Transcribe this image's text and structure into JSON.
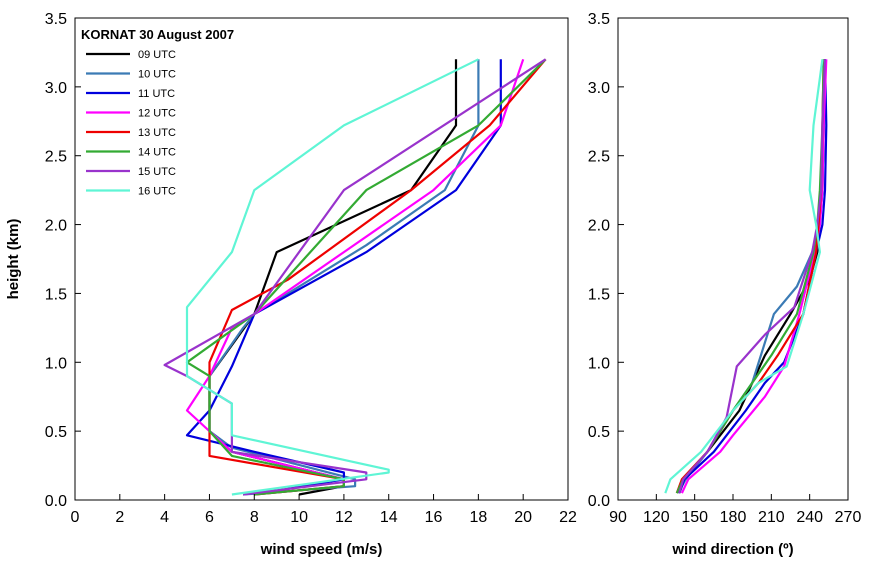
{
  "chart_data": [
    {
      "type": "line",
      "panel": "left",
      "legend_title": "KORNAT 30 August 2007",
      "legend_placement": "top-left",
      "xlabel": "wind speed (m/s)",
      "ylabel": "height (km)",
      "xlim": [
        0,
        22
      ],
      "ylim": [
        0,
        3.5
      ],
      "xticks": [
        "0",
        "2",
        "4",
        "6",
        "8",
        "10",
        "12",
        "14",
        "16",
        "18",
        "20",
        "22"
      ],
      "yticks": [
        "0.0",
        "0.5",
        "1.0",
        "1.5",
        "2.0",
        "2.5",
        "3.0",
        "3.5"
      ],
      "grid": false,
      "series": [
        {
          "name": "09 UTC",
          "color": "#000000",
          "x": [
            10,
            12,
            12,
            7,
            6,
            6,
            8,
            9,
            15,
            17,
            17
          ],
          "y": [
            0.04,
            0.1,
            0.15,
            0.35,
            0.5,
            0.9,
            1.35,
            1.8,
            2.25,
            2.72,
            3.2
          ]
        },
        {
          "name": "10 UTC",
          "color": "#3B7BB5",
          "x": [
            7.5,
            12.5,
            12.5,
            7,
            6,
            6,
            7.5,
            8,
            13,
            16.5,
            18,
            18
          ],
          "y": [
            0.04,
            0.1,
            0.15,
            0.38,
            0.5,
            0.9,
            1.25,
            1.35,
            1.85,
            2.25,
            2.72,
            3.2
          ]
        },
        {
          "name": "11 UTC",
          "color": "#0000DD",
          "x": [
            8,
            12,
            12,
            8,
            5,
            6,
            7,
            8,
            13,
            17,
            19,
            19
          ],
          "y": [
            0.04,
            0.15,
            0.2,
            0.35,
            0.47,
            0.65,
            0.97,
            1.35,
            1.8,
            2.25,
            2.72,
            3.2
          ]
        },
        {
          "name": "12 UTC",
          "color": "#FF00FF",
          "x": [
            8,
            12,
            12,
            7,
            5,
            6,
            7,
            8,
            12,
            16,
            19,
            20
          ],
          "y": [
            0.04,
            0.1,
            0.15,
            0.35,
            0.65,
            0.9,
            1.25,
            1.35,
            1.8,
            2.25,
            2.72,
            3.2
          ]
        },
        {
          "name": "13 UTC",
          "color": "#EE0000",
          "x": [
            8,
            12,
            12,
            6,
            6,
            6,
            7,
            9.5,
            15,
            18.5,
            21
          ],
          "y": [
            0.04,
            0.1,
            0.15,
            0.32,
            0.5,
            1.0,
            1.38,
            1.6,
            2.25,
            2.72,
            3.2
          ]
        },
        {
          "name": "14 UTC",
          "color": "#33AA33",
          "x": [
            8,
            12,
            12,
            7,
            6,
            6,
            5,
            8,
            13,
            18,
            21
          ],
          "y": [
            0.04,
            0.1,
            0.15,
            0.32,
            0.5,
            0.9,
            1.0,
            1.35,
            2.25,
            2.72,
            3.2
          ]
        },
        {
          "name": "15 UTC",
          "color": "#9933CC",
          "x": [
            7.5,
            13,
            13,
            7,
            7,
            5,
            4,
            8,
            12,
            21
          ],
          "y": [
            0.04,
            0.15,
            0.2,
            0.35,
            0.7,
            0.9,
            0.98,
            1.35,
            2.25,
            3.2
          ]
        },
        {
          "name": "16 UTC",
          "color": "#5FF5D5",
          "x": [
            7,
            14,
            14,
            7,
            7,
            5,
            5,
            5,
            7,
            8,
            12,
            18
          ],
          "y": [
            0.04,
            0.2,
            0.22,
            0.47,
            0.7,
            0.9,
            1.0,
            1.4,
            1.8,
            2.25,
            2.72,
            3.2
          ]
        }
      ]
    },
    {
      "type": "line",
      "panel": "right",
      "xlabel": "wind direction (º)",
      "ylabel": "",
      "xlim": [
        90,
        270
      ],
      "ylim": [
        0,
        3.5
      ],
      "xticks": [
        "90",
        "120",
        "150",
        "180",
        "210",
        "240",
        "270"
      ],
      "yticks": [
        "0.0",
        "0.5",
        "1.0",
        "1.5",
        "2.0",
        "2.5",
        "3.0",
        "3.5"
      ],
      "grid": false,
      "series": [
        {
          "name": "09 UTC",
          "color": "#000000",
          "x": [
            138,
            142,
            160,
            185,
            195,
            205,
            225,
            240,
            246,
            250,
            251,
            252
          ],
          "y": [
            0.05,
            0.15,
            0.35,
            0.65,
            0.85,
            1.05,
            1.35,
            1.6,
            1.8,
            2.25,
            2.72,
            3.2
          ]
        },
        {
          "name": "10 UTC",
          "color": "#3B7BB5",
          "x": [
            137,
            143,
            160,
            180,
            195,
            212,
            230,
            242,
            247,
            250,
            251,
            252
          ],
          "y": [
            0.05,
            0.15,
            0.35,
            0.65,
            0.85,
            1.35,
            1.55,
            1.8,
            2.0,
            2.25,
            2.72,
            3.2
          ]
        },
        {
          "name": "11 UTC",
          "color": "#0000DD",
          "x": [
            138,
            142,
            165,
            190,
            205,
            220,
            235,
            245,
            250,
            252,
            253,
            252
          ],
          "y": [
            0.05,
            0.15,
            0.35,
            0.65,
            0.85,
            1.0,
            1.35,
            1.8,
            2.0,
            2.25,
            2.72,
            3.2
          ]
        },
        {
          "name": "12 UTC",
          "color": "#FF00FF",
          "x": [
            140,
            145,
            170,
            180,
            205,
            220,
            232,
            244,
            248,
            250,
            251,
            253
          ],
          "y": [
            0.05,
            0.15,
            0.35,
            0.47,
            0.75,
            0.97,
            1.35,
            1.8,
            2.0,
            2.25,
            2.72,
            3.2
          ]
        },
        {
          "name": "13 UTC",
          "color": "#EE0000",
          "x": [
            136,
            140,
            160,
            180,
            200,
            215,
            235,
            245,
            247,
            249,
            250,
            251
          ],
          "y": [
            0.05,
            0.15,
            0.35,
            0.65,
            0.85,
            1.05,
            1.35,
            1.8,
            2.0,
            2.25,
            2.72,
            3.2
          ]
        },
        {
          "name": "14 UTC",
          "color": "#33AA33",
          "x": [
            136,
            141,
            160,
            180,
            195,
            210,
            230,
            243,
            246,
            248,
            250,
            251
          ],
          "y": [
            0.05,
            0.15,
            0.35,
            0.65,
            0.85,
            1.05,
            1.35,
            1.8,
            2.0,
            2.25,
            2.72,
            3.2
          ]
        },
        {
          "name": "15 UTC",
          "color": "#9933CC",
          "x": [
            138,
            141,
            160,
            175,
            183,
            205,
            228,
            242,
            246,
            249,
            250,
            252
          ],
          "y": [
            0.05,
            0.15,
            0.35,
            0.6,
            0.97,
            1.2,
            1.4,
            1.8,
            2.0,
            2.25,
            2.72,
            3.2
          ]
        },
        {
          "name": "16 UTC",
          "color": "#5FF5D5",
          "x": [
            127,
            131,
            155,
            180,
            200,
            222,
            235,
            248,
            245,
            240,
            243,
            250
          ],
          "y": [
            0.05,
            0.15,
            0.35,
            0.65,
            0.85,
            0.97,
            1.35,
            1.8,
            2.0,
            2.25,
            2.72,
            3.2
          ]
        }
      ]
    }
  ]
}
